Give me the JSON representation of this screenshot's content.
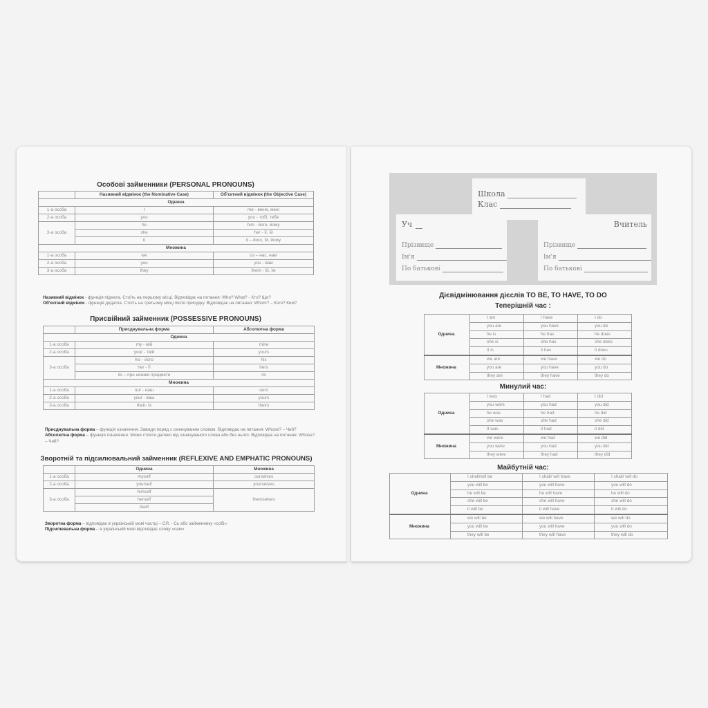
{
  "personal": {
    "title": "Особові займенники (PERSONAL PRONOUNS)",
    "header": [
      "",
      "Називний відмінок  (the Nominative Case)",
      "Об'єктний відмінок (the Objective Case)"
    ],
    "groups": [
      {
        "label": "Однина",
        "persons": [
          {
            "label": "1-а особа",
            "rows": [
              [
                "I",
                "me - мене, мені"
              ]
            ]
          },
          {
            "label": "2-а особа",
            "rows": [
              [
                "you",
                "you - тобі, тебе"
              ]
            ]
          },
          {
            "label": "3-а особа",
            "rows": [
              [
                "he",
                "him - його, йому"
              ],
              [
                "she",
                "her - її, їй"
              ],
              [
                "it",
                "it – його, їй, йому"
              ]
            ]
          }
        ]
      },
      {
        "label": "Множина",
        "persons": [
          {
            "label": "1-а особа",
            "rows": [
              [
                "we",
                "us – нас, нам"
              ]
            ]
          },
          {
            "label": "2-а особа",
            "rows": [
              [
                "you",
                "you - вам"
              ]
            ]
          },
          {
            "label": "3-а особа",
            "rows": [
              [
                "they",
                "them - їй, їм"
              ]
            ]
          }
        ]
      }
    ],
    "notes": [
      {
        "term": "Називний відмінок",
        "text": " - функція підмета. Стоїть на першому місці. Відповідає на питання: Who? What? - Хто? Що?"
      },
      {
        "term": "Об'єктний відмінок",
        "text": " - функція додатка. Стоїть на третьому місці після присудку. Відповідає на питання: Whom? – Кого? Ким?"
      }
    ]
  },
  "possessive": {
    "title": "Присвійний займенник  (POSSESSIVE PRONOUNS)",
    "header": [
      "",
      "Присднувальна форма",
      "Абсолютна форма"
    ],
    "groups": [
      {
        "label": "Однина",
        "persons": [
          {
            "label": "1-а особа",
            "rows": [
              [
                "my - мій",
                "mine"
              ]
            ]
          },
          {
            "label": "2-а особа",
            "rows": [
              [
                "your - твій",
                "yours"
              ]
            ]
          },
          {
            "label": "3-а особа",
            "rows": [
              [
                "his - його",
                "his"
              ],
              [
                "her - її",
                "hers"
              ],
              [
                "its – про неживі предмети",
                "its"
              ]
            ]
          }
        ]
      },
      {
        "label": "Множина",
        "persons": [
          {
            "label": "1-а особа",
            "rows": [
              [
                "our - наш",
                "ours"
              ]
            ]
          },
          {
            "label": "2-а особа",
            "rows": [
              [
                "your - ваш",
                "yours"
              ]
            ]
          },
          {
            "label": "3-а особа",
            "rows": [
              [
                "their- їх",
                "theirs"
              ]
            ]
          }
        ]
      }
    ],
    "notes": [
      {
        "term": "Присднувальна форма",
        "text": " – функція означення. Завжди поряд з означуваним словом. Відповідає  на питання: Whose? – Чий?"
      },
      {
        "term": "Абсолютна форма",
        "text": " – функція означення. Може стояти далеко від означуваного слова або без нього. Відповідає на питання: Whose? – Чий?"
      }
    ]
  },
  "reflexive": {
    "title": "Зворотній та підсилювальний займенник (REFLEXIVE AND EMPHATIC PRONOUNS)",
    "header": [
      "",
      "Однина",
      "Множина"
    ],
    "persons": [
      {
        "label": "1-а особа",
        "rows": [
          [
            "myself",
            "ourselves"
          ]
        ]
      },
      {
        "label": "2-а особа",
        "rows": [
          [
            "yourself",
            "yourselves"
          ]
        ]
      },
      {
        "label": "3-а особа",
        "rows": [
          [
            "himself"
          ],
          [
            "herself"
          ],
          [
            "itself"
          ]
        ],
        "span": "themselves"
      }
    ],
    "notes": [
      {
        "term": "Зворотна форма",
        "text": " – відповідає в українській мові частці – СЯ, - Сь або займеннику «собі»."
      },
      {
        "term": "Підсилювальна форма",
        "text": " – в українській мові відповідає слову «сам»"
      }
    ]
  },
  "header_form": {
    "school": "Школа",
    "class": "Клас",
    "student": "Уч",
    "teacher": "Вчитель",
    "surname": "Прізвище",
    "name": "Ім'я",
    "patronymic": "По батькові"
  },
  "verbs": {
    "title": "Дієвідмінювання дієслів TO BE, TO HAVE, TO DO",
    "tenses": [
      {
        "title": "Теперішній час :",
        "groups": [
          {
            "label": "Однина",
            "rows": [
              [
                "I am",
                "I have",
                "I do"
              ],
              [
                "you are",
                "you have",
                "you do"
              ],
              [
                "he is",
                "he has",
                "he does"
              ],
              [
                "she is",
                "she has",
                "she does"
              ],
              [
                "It is",
                "it has",
                "it does"
              ]
            ]
          },
          {
            "label": "Множина",
            "rows": [
              [
                "we are",
                "we have",
                "we do"
              ],
              [
                "you are",
                "you have",
                "you do"
              ],
              [
                "they are",
                "they have",
                "they do"
              ]
            ]
          }
        ]
      },
      {
        "title": "Минулий час:",
        "groups": [
          {
            "label": "Однина",
            "rows": [
              [
                "I was",
                "I had",
                "I did"
              ],
              [
                "you were",
                "you had",
                "you did"
              ],
              [
                "he was",
                "he had",
                "he did"
              ],
              [
                "she was",
                "she had",
                "she did"
              ],
              [
                "It was",
                "it had",
                "it did"
              ]
            ]
          },
          {
            "label": "Множина",
            "rows": [
              [
                "we were",
                "we had",
                "we  did"
              ],
              [
                "you were",
                "you had",
                "you did"
              ],
              [
                "they were",
                "they had",
                "they did"
              ]
            ]
          }
        ]
      },
      {
        "title": "Майбутній час:",
        "groups": [
          {
            "label": "Однина",
            "rows": [
              [
                "I shall/will be",
                "I shall/ will have",
                "I shall/ will do"
              ],
              [
                "you will be",
                "you will have",
                "you will do"
              ],
              [
                "he will be",
                "he will have",
                "he will do"
              ],
              [
                "she will be",
                "she will have",
                "she will do"
              ],
              [
                "it will be",
                "it will have",
                "it will do"
              ]
            ]
          },
          {
            "label": "Множина",
            "rows": [
              [
                "we will be",
                "we will have",
                "we will do"
              ],
              [
                "you will be",
                "you will have",
                "you will do"
              ],
              [
                "they will be",
                "they will have",
                "they will do"
              ]
            ]
          }
        ]
      }
    ]
  }
}
